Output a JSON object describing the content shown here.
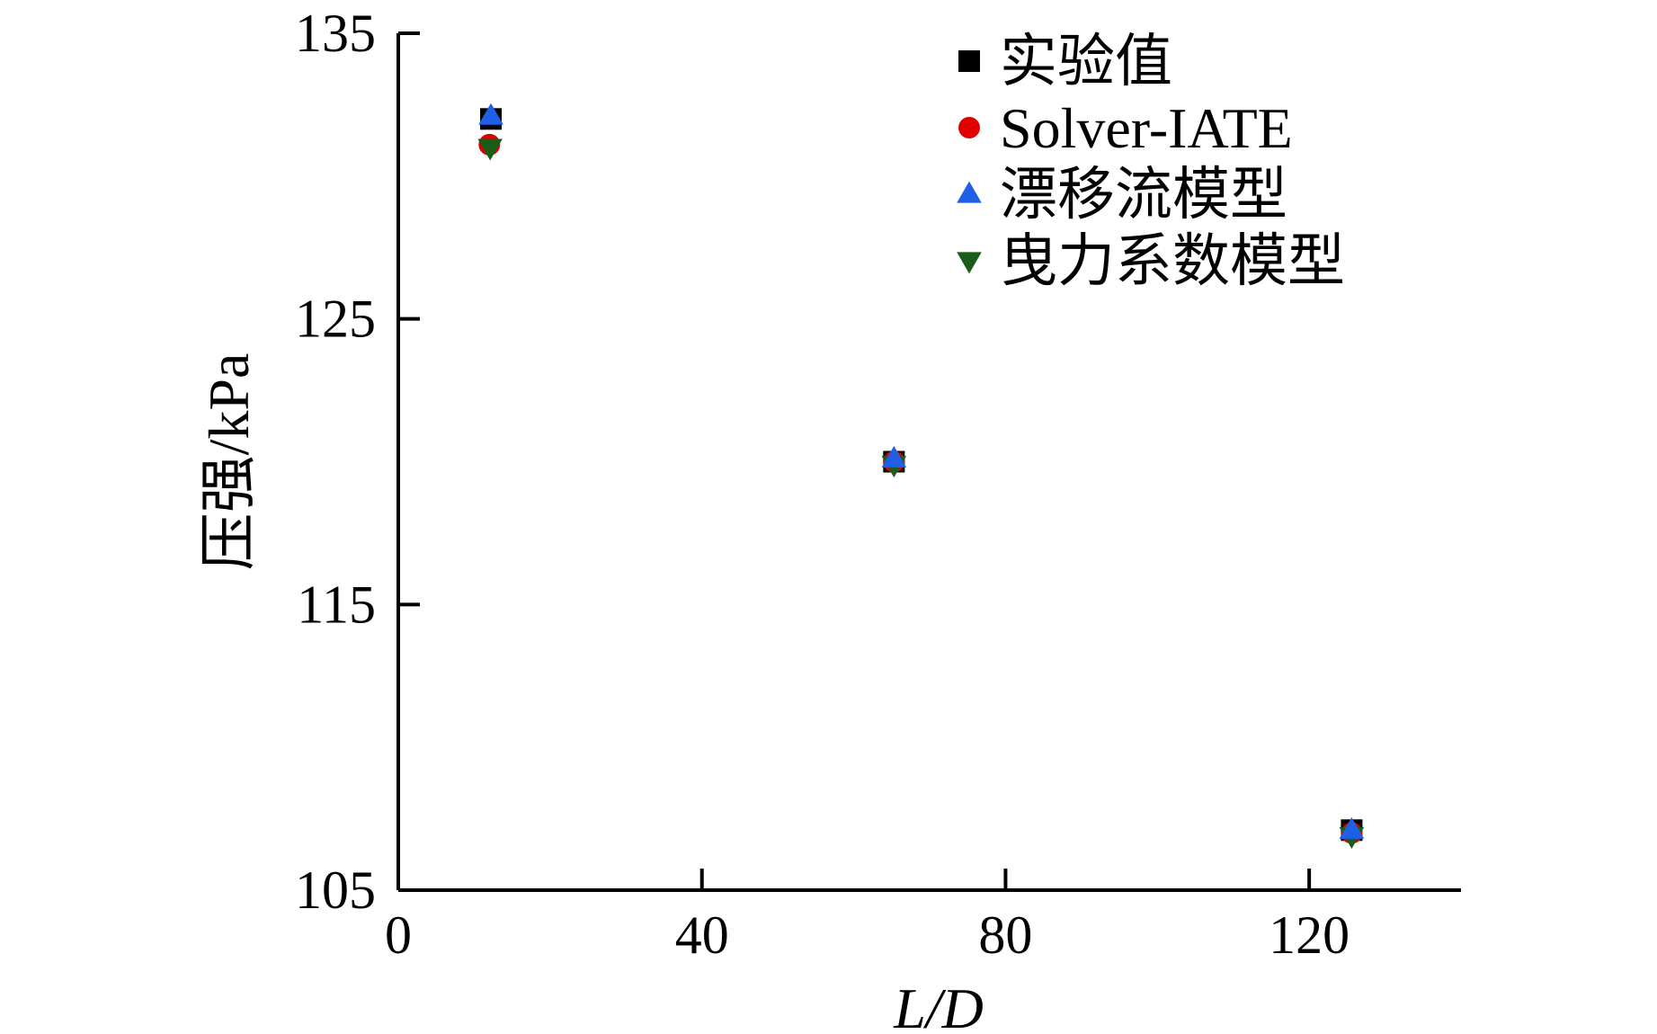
{
  "chart_data": {
    "type": "scatter",
    "xlabel": "L/D",
    "ylabel": "压强/kPa",
    "xlim": [
      0,
      140
    ],
    "ylim": [
      105,
      135
    ],
    "xticks": [
      0,
      40,
      80,
      120
    ],
    "yticks": [
      105,
      115,
      125,
      135
    ],
    "xtick_labels": [
      "0",
      "40",
      "80",
      "120"
    ],
    "ytick_labels": [
      "105",
      "115",
      "125",
      "135"
    ],
    "grid": false,
    "legend_position": "top-right",
    "series": [
      {
        "name": "实验值",
        "marker": "square",
        "color": "#000000",
        "points": [
          [
            12.2,
            132.0
          ],
          [
            65.3,
            120.0
          ],
          [
            125.6,
            107.1
          ]
        ]
      },
      {
        "name": "Solver-IATE",
        "marker": "circle",
        "color": "#e00000",
        "points": [
          [
            12.0,
            131.1
          ],
          [
            65.3,
            120.0
          ],
          [
            125.6,
            107.0
          ]
        ]
      },
      {
        "name": "漂移流模型",
        "marker": "triangle-up",
        "color": "#1f5fe6",
        "points": [
          [
            12.2,
            132.1
          ],
          [
            65.3,
            120.1
          ],
          [
            125.6,
            107.1
          ]
        ]
      },
      {
        "name": "曳力系数模型",
        "marker": "triangle-down",
        "color": "#1a5c1a",
        "points": [
          [
            12.1,
            131.0
          ],
          [
            65.3,
            119.9
          ],
          [
            125.6,
            106.9
          ]
        ]
      }
    ]
  }
}
